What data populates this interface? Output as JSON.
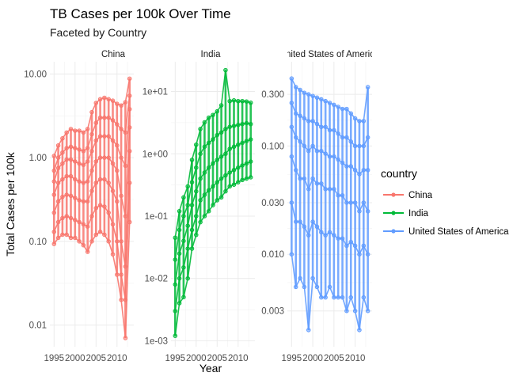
{
  "chart_data": {
    "type": "line",
    "title": "TB Cases per 100k Over Time",
    "subtitle": "Faceted by Country",
    "xlabel": "Year",
    "ylabel": "Total Cases per 100k",
    "y_scale": "log10",
    "y_scales_free": true,
    "grid": true,
    "legend": {
      "title": "country",
      "position": "right"
    },
    "x_ticks": [
      "1995",
      "2000",
      "2005",
      "2010"
    ],
    "x_range": [
      1994,
      2014
    ],
    "panels": [
      {
        "strip": "China",
        "color": "#F8766D",
        "ylim": [
          0.0055,
          14
        ],
        "y_ticks": [
          {
            "v": 0.01,
            "label": "0.01"
          },
          {
            "v": 0.1,
            "label": "0.10"
          },
          {
            "v": 1,
            "label": "1.00"
          },
          {
            "v": 10,
            "label": "10.00"
          }
        ],
        "series_by_year": {
          "1995": [
            0.093,
            0.13,
            0.22,
            0.36,
            0.52,
            0.7,
            1.05
          ],
          "1996": [
            0.11,
            0.17,
            0.3,
            0.5,
            0.75,
            1.0,
            1.4
          ],
          "1997": [
            0.12,
            0.19,
            0.34,
            0.55,
            0.85,
            1.15,
            1.7
          ],
          "1998": [
            0.12,
            0.2,
            0.36,
            0.6,
            0.95,
            1.3,
            2.0
          ],
          "1999": [
            0.11,
            0.19,
            0.35,
            0.6,
            0.95,
            1.35,
            2.2
          ],
          "2000": [
            0.11,
            0.18,
            0.33,
            0.55,
            0.9,
            1.3,
            2.1
          ],
          "2001": [
            0.1,
            0.17,
            0.31,
            0.52,
            0.85,
            1.25,
            2.1
          ],
          "2002": [
            0.09,
            0.16,
            0.3,
            0.5,
            0.82,
            1.2,
            2.0
          ],
          "2003": [
            0.075,
            0.15,
            0.3,
            0.52,
            0.9,
            1.3,
            2.2
          ],
          "2004": [
            0.1,
            0.2,
            0.4,
            0.7,
            1.2,
            1.9,
            3.5
          ],
          "2005": [
            0.12,
            0.25,
            0.5,
            0.9,
            1.6,
            2.6,
            4.5
          ],
          "2006": [
            0.13,
            0.27,
            0.55,
            1.0,
            1.8,
            3.0,
            5.0
          ],
          "2007": [
            0.12,
            0.26,
            0.55,
            1.0,
            1.8,
            3.0,
            5.2
          ],
          "2008": [
            0.1,
            0.22,
            0.5,
            1.0,
            1.8,
            3.0,
            5.0
          ],
          "2009": [
            0.07,
            0.16,
            0.4,
            0.85,
            1.6,
            2.8,
            4.8
          ],
          "2010": [
            0.04,
            0.1,
            0.3,
            0.7,
            1.4,
            2.5,
            4.4
          ],
          "2011": [
            0.02,
            0.04,
            0.1,
            0.35,
            1.0,
            2.2,
            4.2
          ],
          "2012": [
            0.007,
            0.02,
            0.05,
            0.2,
            0.8,
            2.0,
            4.6
          ],
          "2013": [
            0.17,
            0.5,
            1.2,
            2.3,
            3.8,
            5.5,
            8.8
          ]
        }
      },
      {
        "strip": "India",
        "color": "#00BA38",
        "ylim": [
          0.0008,
          30
        ],
        "y_ticks": [
          {
            "v": 0.001,
            "label": "1e-03"
          },
          {
            "v": 0.01,
            "label": "1e-02"
          },
          {
            "v": 0.1,
            "label": "1e-01"
          },
          {
            "v": 1,
            "label": "1e+00"
          },
          {
            "v": 10,
            "label": "1e+01"
          }
        ],
        "series_by_year": {
          "1995": [
            0.0012,
            0.003,
            0.008,
            0.02,
            0.045
          ],
          "1996": [
            0.004,
            0.01,
            0.025,
            0.06,
            0.12
          ],
          "1997": [
            0.005,
            0.015,
            0.04,
            0.1,
            0.2
          ],
          "1998": [
            0.01,
            0.03,
            0.07,
            0.15,
            0.3
          ],
          "1999": [
            0.03,
            0.06,
            0.15,
            0.35,
            0.8
          ],
          "2000": [
            0.05,
            0.1,
            0.25,
            0.6,
            1.4
          ],
          "2001": [
            0.08,
            0.18,
            0.4,
            1.0,
            2.5
          ],
          "2002": [
            0.1,
            0.22,
            0.5,
            1.3,
            3.2
          ],
          "2003": [
            0.12,
            0.26,
            0.6,
            1.5,
            3.8
          ],
          "2004": [
            0.15,
            0.3,
            0.7,
            1.7,
            4.2
          ],
          "2005": [
            0.18,
            0.35,
            0.8,
            2.0,
            4.8
          ],
          "2006": [
            0.2,
            0.4,
            0.9,
            2.2,
            6.0
          ],
          "2007": [
            0.25,
            0.45,
            1.0,
            2.5,
            22.0
          ],
          "2008": [
            0.3,
            0.5,
            1.2,
            2.7,
            7.0
          ],
          "2009": [
            0.32,
            0.55,
            1.3,
            2.8,
            7.2
          ],
          "2010": [
            0.35,
            0.6,
            1.4,
            2.9,
            7.0
          ],
          "2011": [
            0.38,
            0.65,
            1.5,
            3.0,
            7.0
          ],
          "2012": [
            0.4,
            0.7,
            1.6,
            3.1,
            6.9
          ],
          "2013": [
            0.42,
            0.75,
            1.7,
            3.0,
            6.6
          ]
        }
      },
      {
        "strip": "United States of America",
        "color": "#619CFF",
        "ylim": [
          0.0014,
          0.6
        ],
        "y_ticks": [
          {
            "v": 0.003,
            "label": "0.003"
          },
          {
            "v": 0.01,
            "label": "0.010"
          },
          {
            "v": 0.03,
            "label": "0.030"
          },
          {
            "v": 0.1,
            "label": "0.100"
          },
          {
            "v": 0.3,
            "label": "0.300"
          }
        ],
        "series_by_year": {
          "1995": [
            0.01,
            0.03,
            0.08,
            0.15,
            0.25,
            0.42
          ],
          "1996": [
            0.005,
            0.02,
            0.06,
            0.12,
            0.2,
            0.35
          ],
          "1997": [
            0.006,
            0.02,
            0.05,
            0.11,
            0.19,
            0.33
          ],
          "1998": [
            0.005,
            0.018,
            0.05,
            0.1,
            0.18,
            0.31
          ],
          "1999": [
            0.002,
            0.015,
            0.04,
            0.09,
            0.17,
            0.3
          ],
          "2000": [
            0.006,
            0.02,
            0.05,
            0.1,
            0.17,
            0.29
          ],
          "2001": [
            0.005,
            0.018,
            0.045,
            0.09,
            0.16,
            0.28
          ],
          "2002": [
            0.004,
            0.016,
            0.045,
            0.09,
            0.15,
            0.27
          ],
          "2003": [
            0.004,
            0.015,
            0.04,
            0.085,
            0.15,
            0.26
          ],
          "2004": [
            0.005,
            0.016,
            0.04,
            0.08,
            0.14,
            0.25
          ],
          "2005": [
            0.004,
            0.015,
            0.04,
            0.08,
            0.14,
            0.24
          ],
          "2006": [
            0.004,
            0.014,
            0.035,
            0.075,
            0.13,
            0.23
          ],
          "2007": [
            0.004,
            0.014,
            0.035,
            0.07,
            0.12,
            0.22
          ],
          "2008": [
            0.003,
            0.012,
            0.03,
            0.065,
            0.12,
            0.22
          ],
          "2009": [
            0.004,
            0.013,
            0.03,
            0.065,
            0.11,
            0.2
          ],
          "2010": [
            0.003,
            0.012,
            0.03,
            0.06,
            0.1,
            0.18
          ],
          "2011": [
            0.002,
            0.01,
            0.025,
            0.055,
            0.1,
            0.17
          ],
          "2012": [
            0.004,
            0.012,
            0.03,
            0.06,
            0.1,
            0.17
          ],
          "2013": [
            0.003,
            0.01,
            0.025,
            0.06,
            0.12,
            0.35
          ]
        }
      }
    ]
  }
}
